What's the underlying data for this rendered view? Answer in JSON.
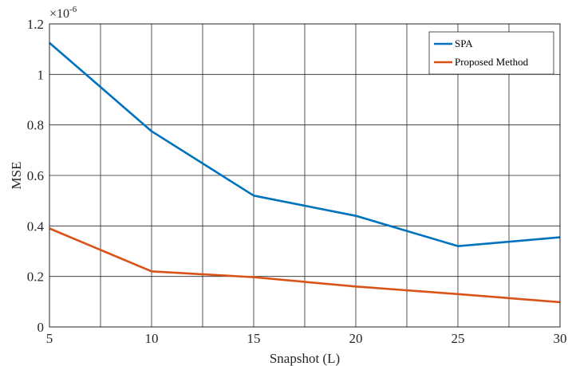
{
  "chart_data": {
    "type": "line",
    "title": "",
    "xlabel": "Snapshot (L)",
    "ylabel": "MSE",
    "y_multiplier": {
      "base": "×10",
      "exponent": "-6"
    },
    "x": [
      5,
      10,
      15,
      20,
      25,
      30
    ],
    "xlim": [
      5,
      30
    ],
    "ylim": [
      0,
      1.2
    ],
    "x_ticks": [
      "5",
      "10",
      "15",
      "20",
      "25",
      "30"
    ],
    "y_ticks": [
      "0",
      "0.2",
      "0.4",
      "0.6",
      "0.8",
      "1",
      "1.2"
    ],
    "x_tick_values": [
      5,
      10,
      15,
      20,
      25,
      30
    ],
    "y_tick_values": [
      0,
      0.2,
      0.4,
      0.6,
      0.8,
      1.0,
      1.2
    ],
    "x_grid_values": [
      5,
      7.5,
      10,
      12.5,
      15,
      17.5,
      20,
      22.5,
      25,
      27.5,
      30
    ],
    "y_grid_values": [
      0,
      0.2,
      0.4,
      0.6,
      0.8,
      1.0,
      1.2
    ],
    "grid": true,
    "legend_position": "top-right",
    "series": [
      {
        "name": "SPA",
        "color": "#0072BD",
        "values": [
          1.125,
          0.775,
          0.52,
          0.44,
          0.32,
          0.355
        ]
      },
      {
        "name": "Proposed Method",
        "color": "#D95319",
        "values": [
          0.39,
          0.22,
          0.197,
          0.16,
          0.13,
          0.098
        ]
      }
    ]
  }
}
